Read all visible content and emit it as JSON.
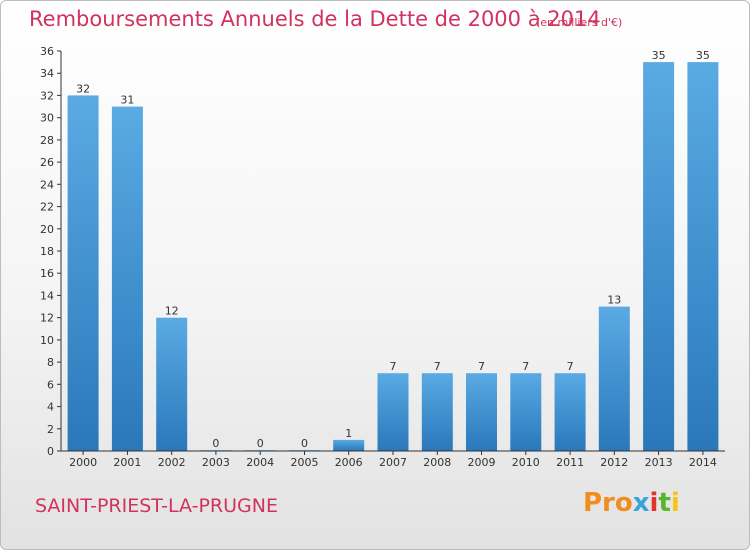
{
  "header": {
    "title": "Remboursements Annuels de la Dette de 2000 à 2014",
    "subtitle": "(en milliers d'€)"
  },
  "footer": {
    "commune": "SAINT-PRIEST-LA-PRUGNE",
    "logo_letters": [
      "Pro",
      "x",
      "i",
      "t",
      "i"
    ]
  },
  "colors": {
    "bar_light": "#5aaae4",
    "bar_dark": "#2a78ba",
    "title": "#d1325f",
    "axis": "#333333"
  },
  "chart_data": {
    "type": "bar",
    "title": "Remboursements Annuels de la Dette de 2000 à 2014",
    "subtitle": "(en milliers d'€)",
    "categories": [
      "2000",
      "2001",
      "2002",
      "2003",
      "2004",
      "2005",
      "2006",
      "2007",
      "2008",
      "2009",
      "2010",
      "2011",
      "2012",
      "2013",
      "2014"
    ],
    "values": [
      32,
      31,
      12,
      0,
      0,
      0,
      1,
      7,
      7,
      7,
      7,
      7,
      13,
      35,
      35
    ],
    "data_labels": [
      "32",
      "31",
      "12",
      "0",
      "0",
      "0",
      "1",
      "7",
      "7",
      "7",
      "7",
      "7",
      "13",
      "35",
      "35"
    ],
    "ylim": [
      0,
      36
    ],
    "yticks": [
      0,
      2,
      4,
      6,
      8,
      10,
      12,
      14,
      16,
      18,
      20,
      22,
      24,
      26,
      28,
      30,
      32,
      34,
      36
    ],
    "xlabel": "",
    "ylabel": "",
    "grid": false,
    "legend": "none"
  }
}
